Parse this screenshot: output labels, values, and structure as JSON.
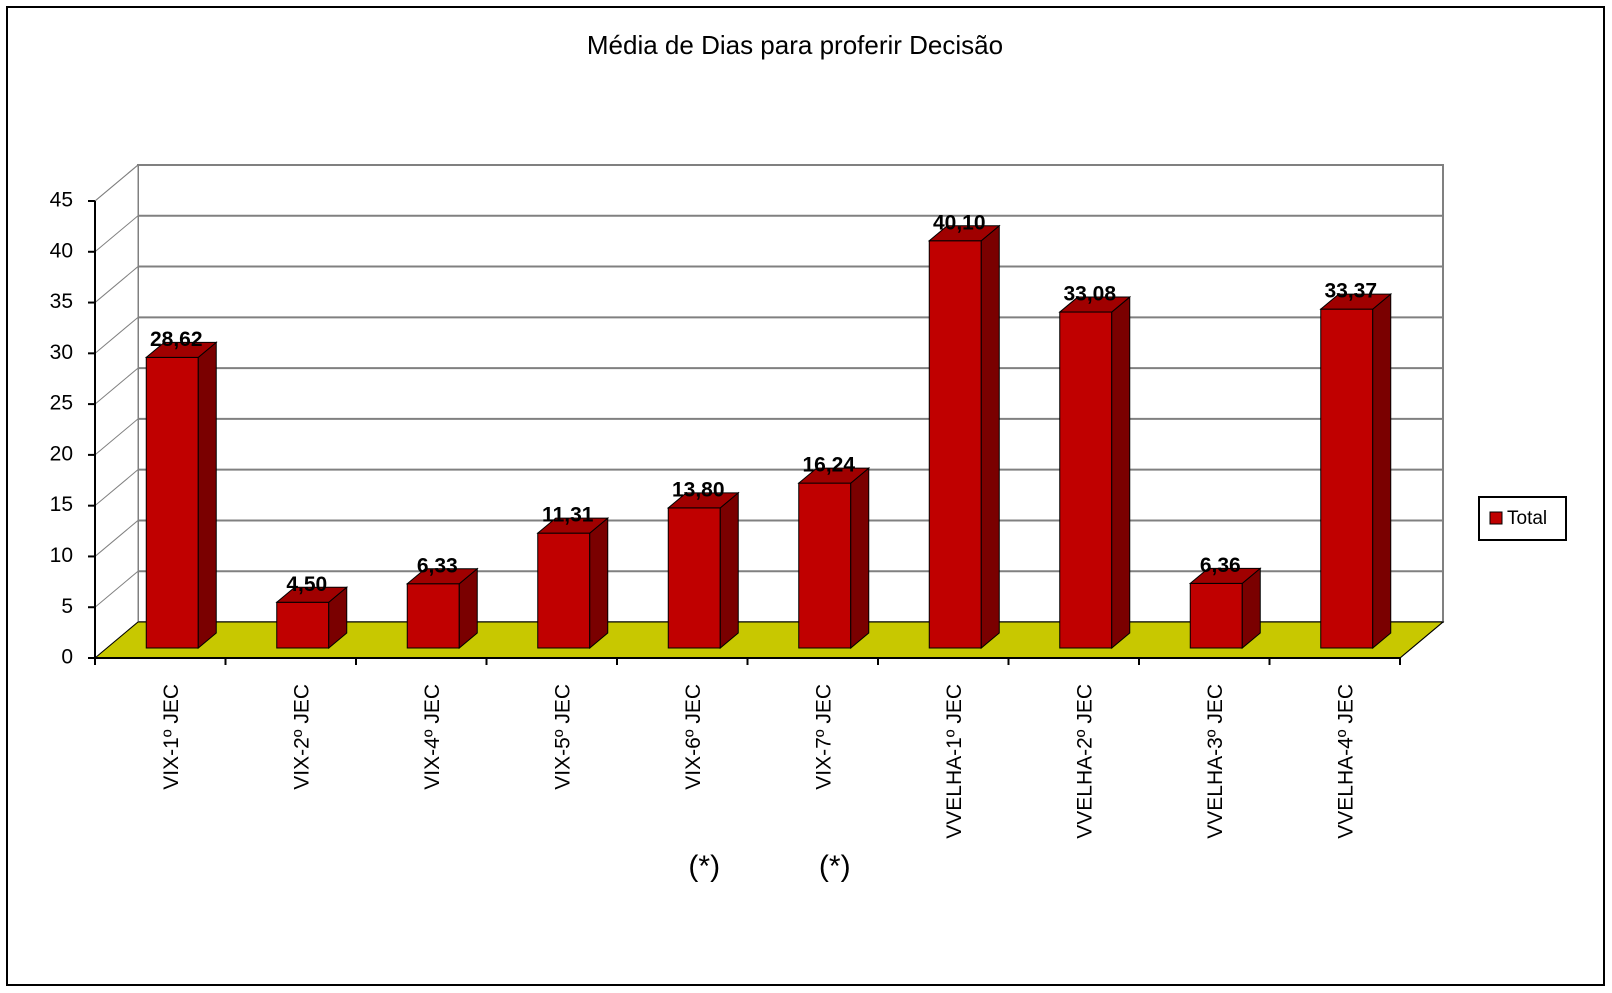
{
  "chart_data": {
    "type": "bar3d",
    "title": "Média de Dias para proferir Decisão",
    "categories": [
      "VIX-1º JEC",
      "VIX-2º JEC",
      "VIX-4º JEC",
      "VIX-5º JEC",
      "VIX-6º JEC",
      "VIX-7º JEC",
      "VVELHA-1º JEC",
      "VVELHA-2º JEC",
      "VVELHA-3º JEC",
      "VVELHA-4º JEC"
    ],
    "notes": [
      null,
      null,
      null,
      null,
      "(*)",
      "(*)",
      null,
      null,
      null,
      null
    ],
    "series": [
      {
        "name": "Total",
        "color": "#c00000",
        "values": [
          28.62,
          4.5,
          6.33,
          11.31,
          13.8,
          16.24,
          40.1,
          33.08,
          6.36,
          33.37
        ],
        "value_labels": [
          "28,62",
          "4,50",
          "6,33",
          "11,31",
          "13,80",
          "16,24",
          "40,10",
          "33,08",
          "6,36",
          "33,37"
        ]
      }
    ],
    "ylim": [
      0,
      45
    ],
    "yticks": [
      0,
      5,
      10,
      15,
      20,
      25,
      30,
      35,
      40,
      45
    ],
    "grid": true,
    "floor_color": "#c8c800",
    "legend": "right"
  }
}
